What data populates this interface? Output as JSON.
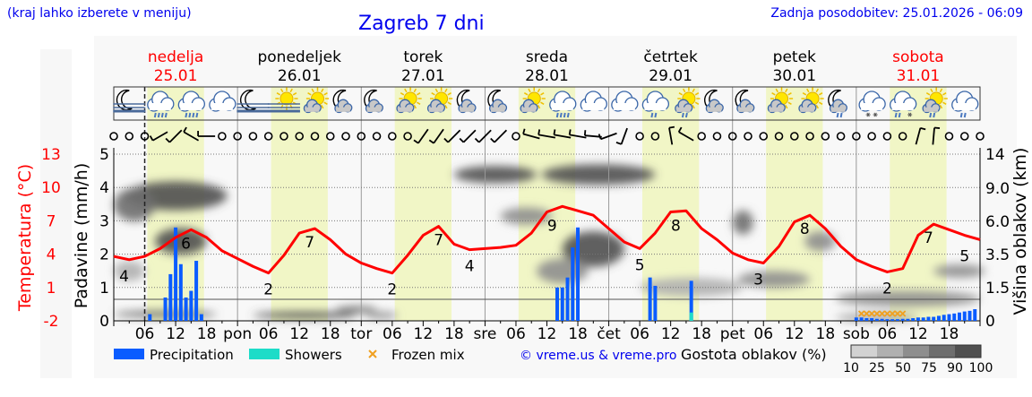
{
  "header": {
    "hint": "(kraj lahko izberete v meniju)",
    "title": "Zagreb 7 dni",
    "updated": "Zadnja posodobitev: 25.01.2026 - 06:09"
  },
  "days": [
    {
      "name": "nedelja",
      "date": "25.01",
      "weekend": true
    },
    {
      "name": "ponedeljek",
      "date": "26.01",
      "weekend": false
    },
    {
      "name": "torek",
      "date": "27.01",
      "weekend": false
    },
    {
      "name": "sreda",
      "date": "28.01",
      "weekend": false
    },
    {
      "name": "četrtek",
      "date": "29.01",
      "weekend": false
    },
    {
      "name": "petek",
      "date": "30.01",
      "weekend": false
    },
    {
      "name": "sobota",
      "date": "31.01",
      "weekend": true
    }
  ],
  "colors": {
    "weekend": "#ff0000",
    "weekday": "#000000",
    "temperature": "#ff0000",
    "precipitation": "#0a5cff",
    "showers": "#1ddcc8",
    "frozen_mix": "#f0a020",
    "daylight": "#f1f6c6",
    "link": "#0000ee"
  },
  "weather_icons": [
    "moon-fog",
    "cloud-rain",
    "cloud-rain",
    "cloud",
    "moon-fog",
    "sun-fog",
    "sun-cloud",
    "moon-cloud",
    "moon-cloud",
    "sun-cloud",
    "sun-cloud",
    "moon-cloud",
    "moon-cloud",
    "sun-cloud",
    "cloud-rain",
    "cloud",
    "cloud",
    "cloud-light-rain",
    "sun-cloud-light-rain",
    "moon-cloud",
    "moon-cloud",
    "sun-cloud",
    "sun-cloud",
    "moon-light-rain",
    "cloud-snow",
    "cloud-sleet",
    "sun-cloud-light-rain",
    "cloud-light-rain"
  ],
  "wind": [
    "calm",
    "calm",
    "calm",
    240,
    225,
    300,
    270,
    "calm",
    "calm",
    "calm",
    "calm",
    "calm",
    "calm",
    "calm",
    "calm",
    "calm",
    "calm",
    "calm",
    "calm",
    "calm",
    215,
    215,
    225,
    225,
    225,
    225,
    "calm",
    285,
    280,
    280,
    280,
    275,
    250,
    200,
    "calm",
    "calm",
    350,
    300,
    "calm",
    "calm",
    "calm",
    "calm",
    "calm",
    "calm",
    "calm",
    "calm",
    "calm",
    "calm",
    "calm",
    "calm",
    "calm",
    "calm",
    15,
    5,
    "calm",
    "calm",
    "calm"
  ],
  "chart_data": {
    "type": "line",
    "time_unit": "hours from nedelja 25.01 00:00",
    "xlim": [
      0,
      168
    ],
    "x_tick_labels": [
      "06",
      "12",
      "18",
      "pon",
      "06",
      "12",
      "18",
      "tor",
      "06",
      "12",
      "18",
      "sre",
      "06",
      "12",
      "18",
      "čet",
      "06",
      "12",
      "18",
      "pet",
      "06",
      "12",
      "18",
      "sob",
      "06",
      "12",
      "18"
    ],
    "y_left": {
      "label": "Padavine (mm/h)",
      "ticks": [
        "0",
        "1",
        "2",
        "3",
        "4",
        "5"
      ],
      "ylim": [
        0,
        5
      ]
    },
    "y_temp": {
      "label": "Temperatura (°C)",
      "ticks": [
        "-2",
        "1",
        "4",
        "7",
        "10",
        "13"
      ],
      "ylim": [
        -2,
        13
      ]
    },
    "y_right": {
      "label": "Višina oblakov (km)",
      "ticks": [
        "0",
        "1.5",
        "3.5",
        "6.0",
        "9.0",
        "14"
      ]
    },
    "current_time_hour": 6,
    "grid": true,
    "temperature": {
      "name": "Temperatura (°C)",
      "x": [
        0,
        3,
        6,
        9,
        12,
        15,
        18,
        21,
        24,
        27,
        30,
        33,
        36,
        39,
        42,
        45,
        48,
        51,
        54,
        57,
        60,
        63,
        66,
        69,
        72,
        75,
        78,
        81,
        84,
        87,
        90,
        93,
        96,
        99,
        102,
        105,
        108,
        111,
        114,
        117,
        120,
        123,
        126,
        129,
        132,
        135,
        138,
        141,
        144,
        147,
        150,
        153,
        156,
        159,
        162,
        165,
        168
      ],
      "y": [
        3.8,
        3.5,
        3.8,
        4.5,
        5.5,
        6.2,
        5.5,
        4.3,
        3.6,
        2.9,
        2.3,
        3.9,
        5.9,
        6.3,
        5.3,
        4.0,
        3.2,
        2.7,
        2.3,
        3.9,
        5.7,
        6.5,
        4.9,
        4.4,
        4.5,
        4.6,
        4.8,
        5.9,
        7.8,
        8.3,
        7.9,
        7.5,
        6.3,
        5.1,
        4.5,
        5.9,
        7.8,
        7.9,
        6.3,
        5.3,
        4.1,
        3.5,
        3.2,
        4.7,
        6.9,
        7.5,
        6.3,
        4.7,
        3.5,
        2.9,
        2.4,
        2.7,
        5.7,
        6.7,
        6.2,
        5.7,
        5.3
      ]
    },
    "temperature_labels": [
      {
        "hour": 2,
        "value": "4"
      },
      {
        "hour": 14,
        "value": "6"
      },
      {
        "hour": 30,
        "value": "2"
      },
      {
        "hour": 38,
        "value": "7"
      },
      {
        "hour": 54,
        "value": "2"
      },
      {
        "hour": 63,
        "value": "7"
      },
      {
        "hour": 69,
        "value": "4"
      },
      {
        "hour": 85,
        "value": "9"
      },
      {
        "hour": 102,
        "value": "5"
      },
      {
        "hour": 109,
        "value": "8"
      },
      {
        "hour": 125,
        "value": "3"
      },
      {
        "hour": 134,
        "value": "8"
      },
      {
        "hour": 150,
        "value": "2"
      },
      {
        "hour": 158,
        "value": "7"
      },
      {
        "hour": 167,
        "value": "5"
      }
    ],
    "precipitation": {
      "name": "Precipitation",
      "hours": [
        7,
        10,
        11,
        12,
        13,
        14,
        15,
        16,
        17,
        86,
        87,
        88,
        89,
        90,
        104,
        105,
        112,
        144,
        145,
        146,
        147,
        148,
        149,
        150,
        151,
        152,
        153,
        154,
        155,
        156,
        157,
        158,
        159,
        160,
        161,
        162,
        163,
        164,
        165,
        166,
        167
      ],
      "values": [
        0.2,
        0.7,
        1.4,
        2.8,
        1.7,
        0.7,
        0.9,
        1.8,
        0.2,
        1.0,
        1.0,
        1.3,
        2.2,
        2.8,
        1.3,
        1.05,
        1.2,
        0.1,
        0.1,
        0.08,
        0.08,
        0.06,
        0.06,
        0.05,
        0.05,
        0.05,
        0.06,
        0.06,
        0.08,
        0.1,
        0.1,
        0.12,
        0.12,
        0.15,
        0.18,
        0.2,
        0.22,
        0.25,
        0.28,
        0.3,
        0.35
      ]
    },
    "showers": {
      "name": "Showers",
      "hours": [
        112
      ],
      "values": [
        0.25
      ]
    },
    "frozen_mix": {
      "name": "Frozen mix",
      "hours": [
        145,
        146,
        147,
        148,
        149,
        150,
        151,
        152,
        153
      ]
    },
    "cloud_density": [
      {
        "hour": 12,
        "km": 8.5,
        "span_h": 10,
        "span_km": 3,
        "percent": 90
      },
      {
        "hour": 13,
        "km": 4.5,
        "span_h": 5,
        "span_km": 2,
        "percent": 90
      },
      {
        "hour": 4,
        "km": 7.5,
        "span_h": 4,
        "span_km": 3,
        "percent": 75
      },
      {
        "hour": 3,
        "km": 2.5,
        "span_h": 3,
        "span_km": 1.2,
        "percent": 25
      },
      {
        "hour": 10,
        "km": 0.3,
        "span_h": 10,
        "span_km": 0.3,
        "percent": 75
      },
      {
        "hour": 37,
        "km": 0.25,
        "span_h": 10,
        "span_km": 0.25,
        "percent": 90
      },
      {
        "hour": 47,
        "km": 0.5,
        "span_h": 4,
        "span_km": 0.2,
        "percent": 75
      },
      {
        "hour": 52,
        "km": 0.25,
        "span_h": 3,
        "span_km": 0.25,
        "percent": 50
      },
      {
        "hour": 74,
        "km": 11,
        "span_h": 8,
        "span_km": 2.5,
        "percent": 90
      },
      {
        "hour": 80,
        "km": 6.5,
        "span_h": 5,
        "span_km": 1.5,
        "percent": 60
      },
      {
        "hour": 94,
        "km": 11,
        "span_h": 11,
        "span_km": 3,
        "percent": 95
      },
      {
        "hour": 93,
        "km": 4,
        "span_h": 6,
        "span_km": 2.5,
        "percent": 90
      },
      {
        "hour": 87,
        "km": 2.5,
        "span_h": 5,
        "span_km": 1.5,
        "percent": 50
      },
      {
        "hour": 112,
        "km": 1.6,
        "span_h": 10,
        "span_km": 1,
        "percent": 40
      },
      {
        "hour": 122,
        "km": 6,
        "span_h": 2,
        "span_km": 2,
        "percent": 75
      },
      {
        "hour": 128,
        "km": 2,
        "span_h": 7,
        "span_km": 1,
        "percent": 50
      },
      {
        "hour": 137,
        "km": 4.5,
        "span_h": 3,
        "span_km": 1.5,
        "percent": 50
      },
      {
        "hour": 154,
        "km": 1,
        "span_h": 14,
        "span_km": 0.7,
        "percent": 60
      },
      {
        "hour": 164,
        "km": 2.5,
        "span_h": 5,
        "span_km": 0.8,
        "percent": 50
      },
      {
        "hour": 148,
        "km": 0.15,
        "span_h": 8,
        "span_km": 0.15,
        "percent": 50
      }
    ],
    "legend": {
      "precipitation": "Precipitation",
      "showers": "Showers",
      "frozen_mix": "Frozen mix",
      "copyright": "© vreme.us & vreme.pro",
      "density_title": "Gostota oblakov (%)",
      "density_scale": [
        "10",
        "25",
        "50",
        "75",
        "90",
        "100"
      ],
      "density_colors": [
        "#d2d2d2",
        "#b0b0b0",
        "#8e8e8e",
        "#6e6e6e",
        "#505050"
      ]
    }
  }
}
